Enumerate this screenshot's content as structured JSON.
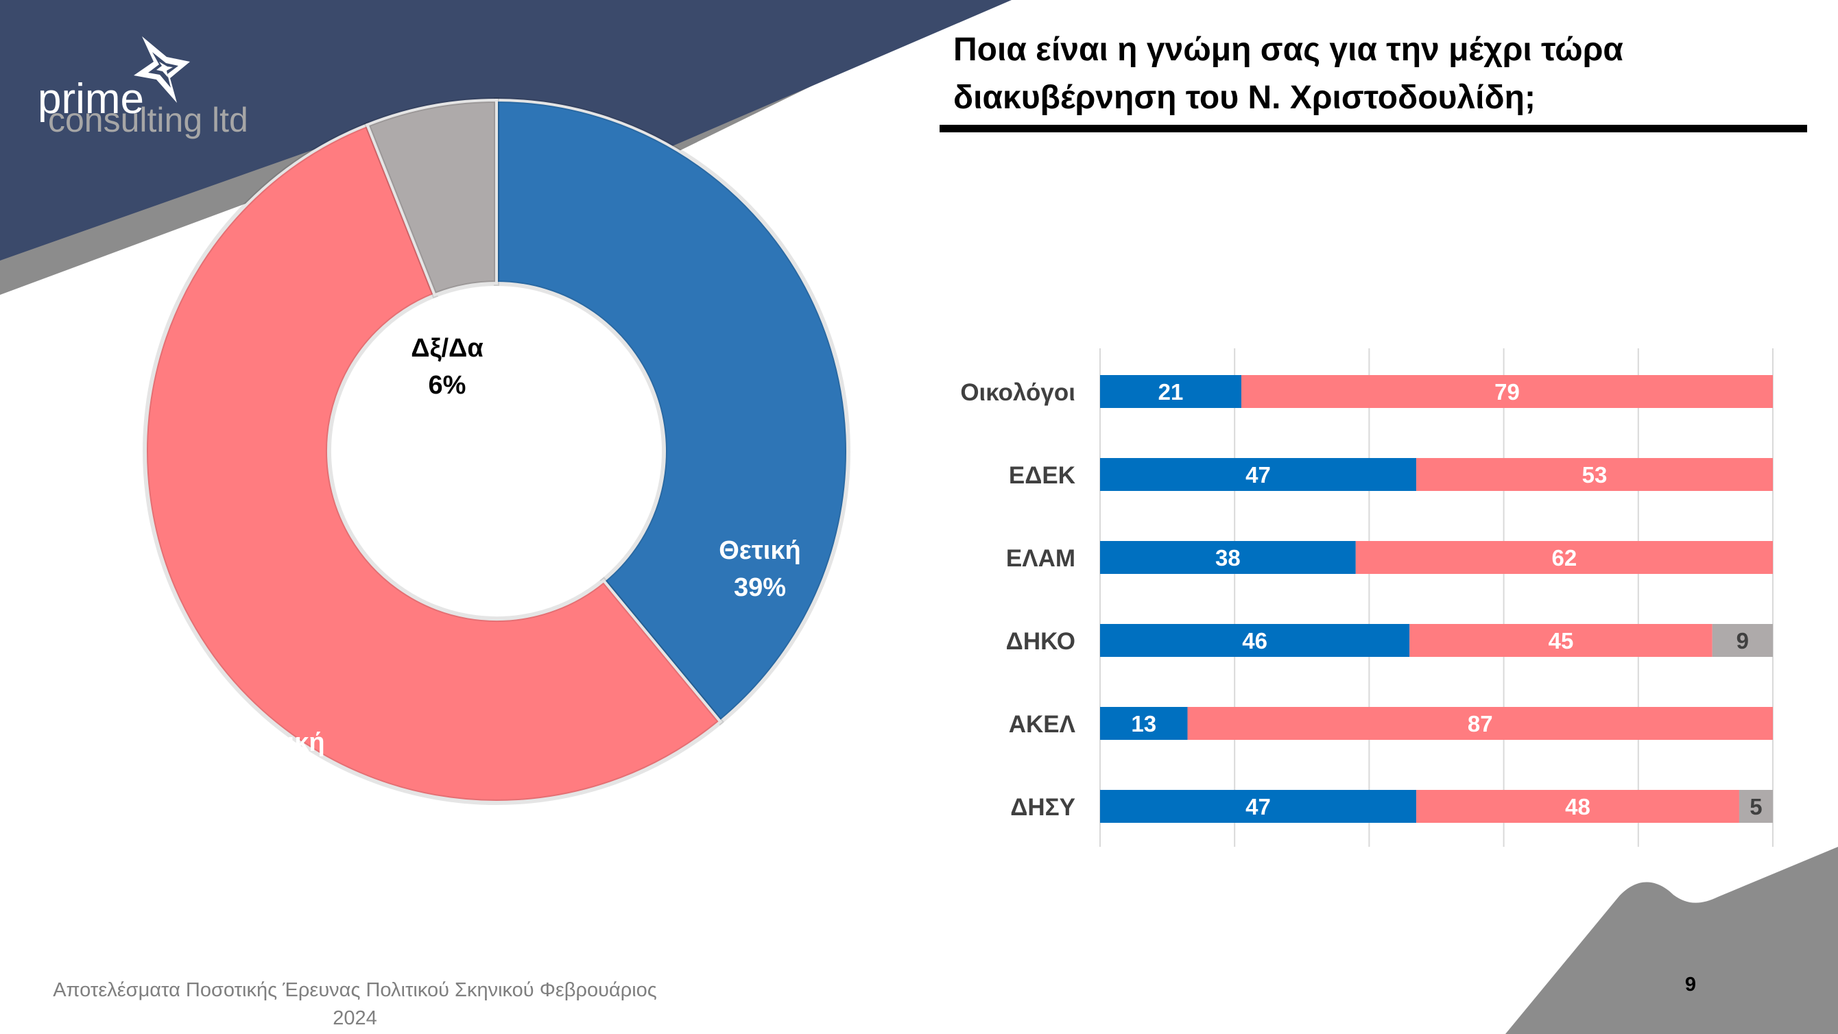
{
  "logo": {
    "line1": "prime",
    "line2": "consulting ltd"
  },
  "header": {
    "title": "Ποια είναι η γνώμη σας για την μέχρι τώρα διακυβέρνηση του Ν. Χριστοδουλίδη;"
  },
  "footer": {
    "source_line1": "Αποτελέσματα Ποσοτικής Έρευνας Πολιτικού Σκηνικού Φεβρουάριος",
    "source_line2": "2024",
    "page_number": "9"
  },
  "colors": {
    "positive": "#2e75b6",
    "negative": "#ff7c80",
    "dont_know": "#aeaaaa",
    "bar_positive": "#0070c0",
    "header_navy": "#3b4a6b",
    "header_gray": "#8c8c8c"
  },
  "chart_data": [
    {
      "type": "pie",
      "subtype": "donut",
      "slices": [
        {
          "label": "Θετική",
          "value": 39,
          "display": "39%",
          "color": "#2e75b6"
        },
        {
          "label": "Αρνητική",
          "value": 55,
          "display": "55%",
          "color": "#ff7c80"
        },
        {
          "label": "Δξ/Δα",
          "value": 6,
          "display": "6%",
          "color": "#aeaaaa"
        }
      ]
    },
    {
      "type": "bar",
      "orientation": "horizontal",
      "stacked": true,
      "categories": [
        "Οικολόγοι",
        "ΕΔΕΚ",
        "ΕΛΑΜ",
        "ΔΗΚΟ",
        "ΑΚΕΛ",
        "ΔΗΣΥ"
      ],
      "series": [
        {
          "values": [
            21,
            47,
            38,
            46,
            13,
            47
          ],
          "color": "#0070c0"
        },
        {
          "values": [
            79,
            53,
            62,
            45,
            87,
            48
          ],
          "color": "#ff7c80"
        },
        {
          "values": [
            0,
            0,
            0,
            9,
            0,
            5
          ],
          "color": "#aeaaaa"
        }
      ],
      "xlim": [
        0,
        100
      ],
      "grid": true
    }
  ]
}
